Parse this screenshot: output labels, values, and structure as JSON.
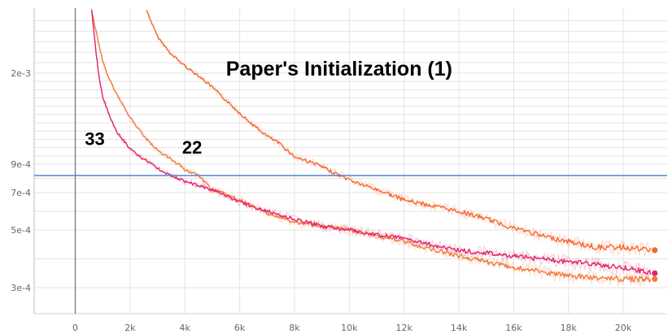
{
  "chart_data": {
    "type": "line",
    "title": "",
    "xlabel": "",
    "ylabel": "",
    "xlim": [
      -1500,
      21600
    ],
    "ylim": [
      0.00022,
      0.00262
    ],
    "x_ticks": [
      0,
      2000,
      4000,
      6000,
      8000,
      10000,
      12000,
      14000,
      16000,
      18000,
      20000
    ],
    "x_tick_labels": [
      "0",
      "2k",
      "4k",
      "6k",
      "8k",
      "10k",
      "12k",
      "14k",
      "16k",
      "18k",
      "20k"
    ],
    "y_ticks": [
      0.0003,
      0.0005,
      0.0007,
      0.0009,
      0.002
    ],
    "y_tick_labels": [
      "3e-4",
      "5e-4",
      "7e-4",
      "9e-4",
      "2e-3"
    ],
    "y_extra_gridlines": [
      0.0004,
      0.0006,
      0.0008,
      0.001,
      0.0011,
      0.0012,
      0.0013,
      0.0014,
      0.0015,
      0.0016,
      0.0017,
      0.0018,
      0.0019,
      0.0021,
      0.0022,
      0.0023,
      0.0024,
      0.0025
    ],
    "grid": true,
    "legend": "none",
    "reference_line": {
      "y": 0.00082,
      "color": "#4a86d6"
    },
    "annotations": [
      {
        "text": "Paper's Initialization (1)",
        "x": 5500,
        "y": 0.00197
      },
      {
        "text": "33",
        "x": 350,
        "y": 0.00113
      },
      {
        "text": "22",
        "x": 3900,
        "y": 0.00103
      }
    ],
    "series": [
      {
        "color": "#f4682e",
        "x": [
          2600,
          3000,
          3500,
          4000,
          4500,
          5000,
          5500,
          6000,
          6500,
          7000,
          7500,
          8000,
          9000,
          10000,
          11000,
          12000,
          13000,
          14000,
          15000,
          16000,
          17000,
          18000,
          19000,
          20000,
          21000
        ],
        "y": [
          0.0026,
          0.00235,
          0.00218,
          0.00207,
          0.00197,
          0.00183,
          0.00167,
          0.00152,
          0.00137,
          0.00124,
          0.00114,
          0.00099,
          0.00088,
          0.00079,
          0.00072,
          0.00066,
          0.00063,
          0.0006,
          0.00056,
          0.00051,
          0.00048,
          0.00046,
          0.00044,
          0.00044,
          0.00043
        ]
      },
      {
        "color": "#f27a3f",
        "x": [
          600,
          1000,
          1500,
          2000,
          2500,
          3000,
          3500,
          4000,
          4500,
          5000,
          6000,
          7000,
          8000,
          9000,
          10000,
          12000,
          14000,
          16000,
          18000,
          20000,
          21000
        ],
        "y": [
          0.0026,
          0.00212,
          0.00175,
          0.00147,
          0.00124,
          0.00107,
          0.00096,
          0.00086,
          0.00082,
          0.00072,
          0.00066,
          0.00059,
          0.00054,
          0.00052,
          0.0005,
          0.00046,
          0.00041,
          0.00037,
          0.00034,
          0.00033,
          0.00033
        ]
      },
      {
        "color": "#e0246a",
        "x": [
          600,
          1000,
          1500,
          2000,
          2500,
          3000,
          3500,
          4000,
          5000,
          6000,
          7000,
          8000,
          9000,
          10000,
          12000,
          14000,
          16000,
          18000,
          20000,
          21000
        ],
        "y": [
          0.0026,
          0.00171,
          0.0013,
          0.00109,
          0.00096,
          0.00087,
          0.00082,
          0.00078,
          0.00072,
          0.00065,
          0.0006,
          0.00056,
          0.00052,
          0.0005,
          0.00047,
          0.00043,
          0.00041,
          0.00039,
          0.00037,
          0.00035
        ]
      }
    ]
  }
}
